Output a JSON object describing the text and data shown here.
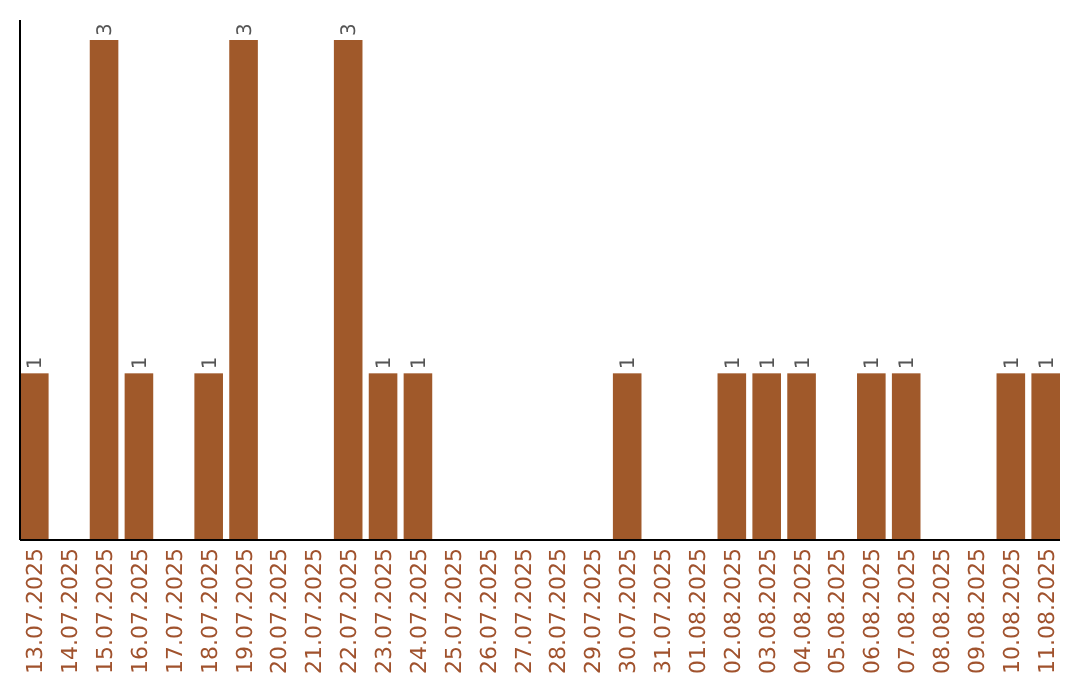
{
  "chart_data": {
    "type": "bar",
    "categories": [
      "13.07.2025",
      "14.07.2025",
      "15.07.2025",
      "16.07.2025",
      "17.07.2025",
      "18.07.2025",
      "19.07.2025",
      "20.07.2025",
      "21.07.2025",
      "22.07.2025",
      "23.07.2025",
      "24.07.2025",
      "25.07.2025",
      "26.07.2025",
      "27.07.2025",
      "28.07.2025",
      "29.07.2025",
      "30.07.2025",
      "31.07.2025",
      "01.08.2025",
      "02.08.2025",
      "03.08.2025",
      "04.08.2025",
      "05.08.2025",
      "06.08.2025",
      "07.08.2025",
      "08.08.2025",
      "09.08.2025",
      "10.08.2025",
      "11.08.2025"
    ],
    "values": [
      1,
      0,
      3,
      1,
      0,
      1,
      3,
      0,
      0,
      3,
      1,
      1,
      0,
      0,
      0,
      0,
      0,
      1,
      0,
      0,
      1,
      1,
      1,
      0,
      1,
      1,
      0,
      0,
      1,
      1
    ],
    "value_labels": [
      "1",
      null,
      "3",
      "1",
      null,
      "1",
      "3",
      null,
      null,
      "3",
      "1",
      "1",
      null,
      null,
      null,
      null,
      null,
      "1",
      null,
      null,
      "1",
      "1",
      "1",
      null,
      "1",
      "1",
      null,
      null,
      "1",
      "1"
    ],
    "color": "#a0592a"
  }
}
